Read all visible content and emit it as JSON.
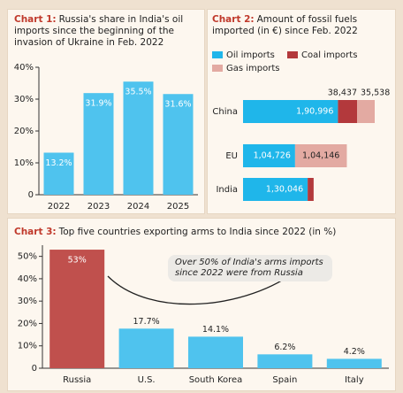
{
  "chart_data": [
    {
      "type": "bar",
      "label": "Chart 1:",
      "title": "Russia's share in India's oil imports since the beginning of the invasion of Ukraine in Feb. 2022",
      "categories": [
        "2022",
        "2023",
        "2024",
        "2025"
      ],
      "values": [
        13.2,
        31.9,
        35.5,
        31.6
      ],
      "value_labels": [
        "13.2%",
        "31.9%",
        "35.5%",
        "31.6%"
      ],
      "color": "#4fc3ee",
      "ylim": [
        0,
        40
      ],
      "yticks": [
        0,
        {
          "value": 10,
          "label": "10%"
        },
        {
          "value": 20,
          "label": "20%"
        },
        {
          "value": 30,
          "label": "30%"
        },
        {
          "value": 40,
          "label": "40%"
        }
      ]
    },
    {
      "type": "stacked-hbar",
      "label": "Chart 2:",
      "title": "Amount of fossil fuels imported (in €) since Feb. 2022",
      "categories": [
        "China",
        "EU",
        "India"
      ],
      "series": [
        {
          "name": "Oil imports",
          "color": "#1fb6ea",
          "values": [
            190996,
            104726,
            130046
          ],
          "value_labels": [
            "1,90,996",
            "1,04,726",
            "1,30,046"
          ]
        },
        {
          "name": "Coal imports",
          "color": "#b3393c",
          "values": [
            38437,
            0,
            12000
          ],
          "value_labels": [
            "38,437",
            null,
            null
          ]
        },
        {
          "name": "Gas imports",
          "color": "#e3aaa2",
          "values": [
            35538,
            104146,
            0
          ],
          "value_labels": [
            "35,538",
            "1,04,146",
            null
          ]
        }
      ]
    },
    {
      "type": "bar",
      "label": "Chart 3:",
      "title": "Top five countries exporting arms to India since 2022 (in %)",
      "categories": [
        "Russia",
        "U.S.",
        "South Korea",
        "Spain",
        "Italy"
      ],
      "values": [
        53,
        17.7,
        14.1,
        6.2,
        4.2
      ],
      "value_labels": [
        "53%",
        "17.7%",
        "14.1%",
        "6.2%",
        "4.2%"
      ],
      "colors": [
        "#c0504d",
        "#4fc3ee",
        "#4fc3ee",
        "#4fc3ee",
        "#4fc3ee"
      ],
      "annotation": "Over 50% of India's arms imports since 2022 were from Russia",
      "ylim": [
        0,
        55
      ],
      "yticks": [
        0,
        {
          "value": 10,
          "label": "10%"
        },
        {
          "value": 20,
          "label": "20%"
        },
        {
          "value": 30,
          "label": "30%"
        },
        {
          "value": 40,
          "label": "40%"
        },
        {
          "value": 50,
          "label": "50%"
        }
      ]
    }
  ]
}
